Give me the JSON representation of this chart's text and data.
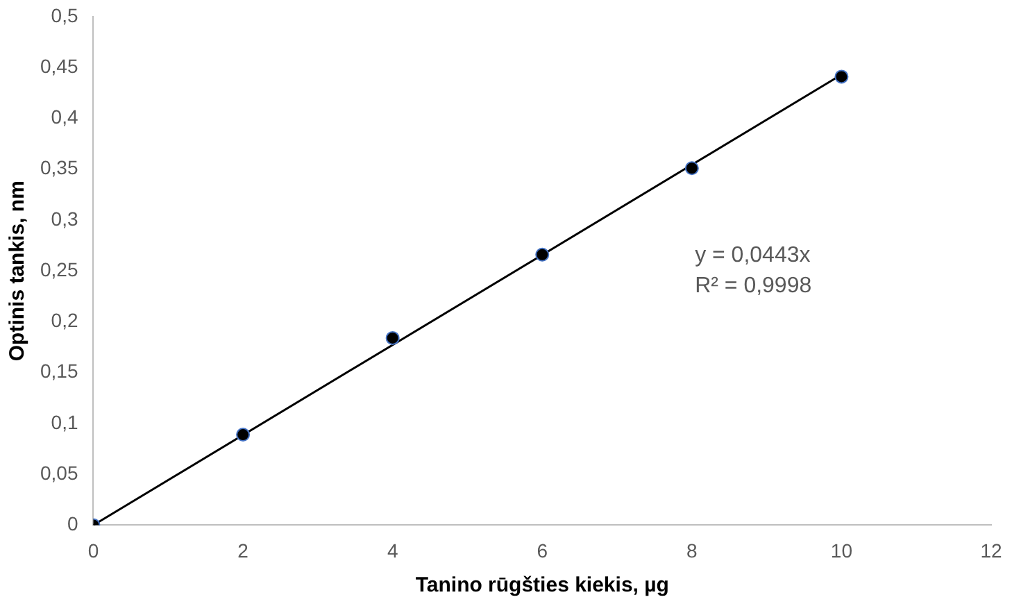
{
  "chart_data": {
    "type": "scatter",
    "xlabel": "Tanino rūgšties kiekis, µg",
    "ylabel": "Optinis tankis, nm",
    "x": [
      0,
      2,
      4,
      6,
      8,
      10
    ],
    "series": [
      {
        "color": "#000000",
        "marker": "circle",
        "values": [
          0,
          0.089,
          0.184,
          0.266,
          0.351,
          0.441
        ]
      },
      {
        "type": "line",
        "color": "#000000",
        "marker": "none",
        "x": [
          0,
          10
        ],
        "values": [
          0,
          0.443
        ]
      }
    ],
    "xlim": [
      0,
      12
    ],
    "xticks": [
      0,
      2,
      4,
      6,
      8,
      10,
      12
    ],
    "ylim": [
      0,
      0.5
    ],
    "yticks": [
      0,
      {
        "value": 0.05,
        "label": "0,05"
      },
      {
        "value": 0.1,
        "label": "0,1"
      },
      {
        "value": 0.15,
        "label": "0,15"
      },
      {
        "value": 0.2,
        "label": "0,2"
      },
      {
        "value": 0.25,
        "label": "0,25"
      },
      {
        "value": 0.3,
        "label": "0,3"
      },
      {
        "value": 0.35,
        "label": "0,35"
      },
      {
        "value": 0.4,
        "label": "0,4"
      },
      {
        "value": 0.45,
        "label": "0,45"
      },
      {
        "value": 0.5,
        "label": "0,5"
      }
    ],
    "annotations": [
      "y = 0,0443x",
      "R² = 0,9998"
    ],
    "grid": false,
    "legend": false
  }
}
